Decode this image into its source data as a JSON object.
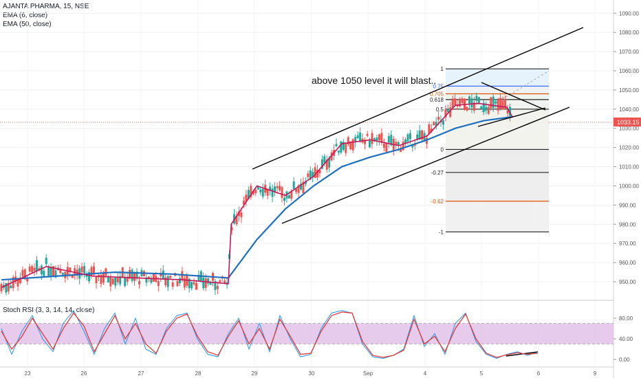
{
  "legend": {
    "symbol": "AJANTA PHARMA, 15, NSE",
    "ema1": "EMA (6, close)",
    "ema2": "EMA (50, close)",
    "stoch": "Stoch RSI (3, 3, 14, 14, close)"
  },
  "annotation": "above 1050 level it will blast..",
  "last_price": "1033.15",
  "colors": {
    "ema_fast": "#c2185b",
    "ema_slow": "#1e6fbf",
    "candle_up": "#26a69a",
    "candle_down": "#ef5350",
    "stoch_k": "#2196f3",
    "stoch_d": "#e53935",
    "stoch_band": "#e1bee7",
    "price_tag": "#ef5350"
  },
  "chart_data": [
    {
      "type": "candlestick",
      "symbol": "AJANTA PHARMA",
      "interval": "15",
      "exchange": "NSE",
      "x_ticks": [
        "23",
        "26",
        "27",
        "28",
        "29",
        "30",
        "Sep",
        "4",
        "5",
        "6",
        "9"
      ],
      "y_ticks": [
        950,
        960,
        970,
        980,
        990,
        1000,
        1010,
        1020,
        1030,
        1040,
        1050,
        1060,
        1070,
        1080,
        1090
      ],
      "ylim": [
        940,
        1094
      ],
      "last_price": 1033.15,
      "ema_6_path": [
        [
          0,
          947
        ],
        [
          0.8,
          958
        ],
        [
          1.6,
          953
        ],
        [
          2.4,
          952
        ],
        [
          3.2,
          951
        ],
        [
          4.0,
          949
        ],
        [
          4.05,
          980
        ],
        [
          4.5,
          1000
        ],
        [
          5.0,
          995
        ],
        [
          5.5,
          1005
        ],
        [
          6.0,
          1022
        ],
        [
          6.5,
          1024
        ],
        [
          7.0,
          1021
        ],
        [
          7.5,
          1026
        ],
        [
          8.0,
          1042
        ],
        [
          8.4,
          1043
        ],
        [
          8.9,
          1041
        ],
        [
          9.0,
          1036
        ]
      ],
      "ema_50_path": [
        [
          0,
          951
        ],
        [
          1.0,
          953
        ],
        [
          2.0,
          955
        ],
        [
          3.0,
          954
        ],
        [
          4.0,
          952
        ],
        [
          4.5,
          972
        ],
        [
          5.0,
          988
        ],
        [
          5.5,
          1000
        ],
        [
          6.0,
          1010
        ],
        [
          6.5,
          1015
        ],
        [
          7.0,
          1019
        ],
        [
          7.5,
          1024
        ],
        [
          8.0,
          1030
        ],
        [
          8.5,
          1034
        ],
        [
          9.0,
          1036
        ]
      ],
      "fibonacci": [
        {
          "level": "1",
          "price": 1061
        },
        {
          "level": "0.75",
          "price": 1052
        },
        {
          "level": "0.705",
          "price": 1048
        },
        {
          "level": "0.618",
          "price": 1045
        },
        {
          "level": "0.5",
          "price": 1040
        },
        {
          "level": "0",
          "price": 1019
        },
        {
          "level": "-0.27",
          "price": 1007
        },
        {
          "level": "-0.62",
          "price": 992
        },
        {
          "level": "-1",
          "price": 976
        }
      ]
    },
    {
      "type": "line",
      "name": "Stoch RSI (3, 3, 14, 14, close)",
      "y_ticks": [
        0,
        40,
        80
      ],
      "ylim": [
        -10,
        95
      ],
      "band": [
        30,
        70
      ],
      "series": [
        {
          "name": "K",
          "values": [
            60,
            10,
            55,
            85,
            40,
            15,
            70,
            95,
            55,
            10,
            60,
            90,
            30,
            80,
            20,
            10,
            60,
            85,
            90,
            40,
            10,
            5,
            50,
            80,
            20,
            70,
            15,
            85,
            40,
            5,
            10,
            60,
            90,
            95,
            90,
            30,
            5,
            2,
            8,
            20,
            85,
            25,
            50,
            10,
            70,
            90,
            35,
            10,
            2,
            10,
            15,
            8,
            14
          ]
        },
        {
          "name": "D",
          "values": [
            55,
            20,
            45,
            80,
            50,
            20,
            60,
            90,
            65,
            15,
            50,
            85,
            40,
            70,
            30,
            12,
            55,
            80,
            88,
            45,
            15,
            8,
            45,
            75,
            30,
            60,
            20,
            78,
            45,
            10,
            12,
            55,
            85,
            92,
            90,
            35,
            8,
            4,
            8,
            18,
            78,
            30,
            45,
            15,
            60,
            88,
            40,
            12,
            4,
            9,
            13,
            10,
            12
          ]
        }
      ]
    }
  ]
}
